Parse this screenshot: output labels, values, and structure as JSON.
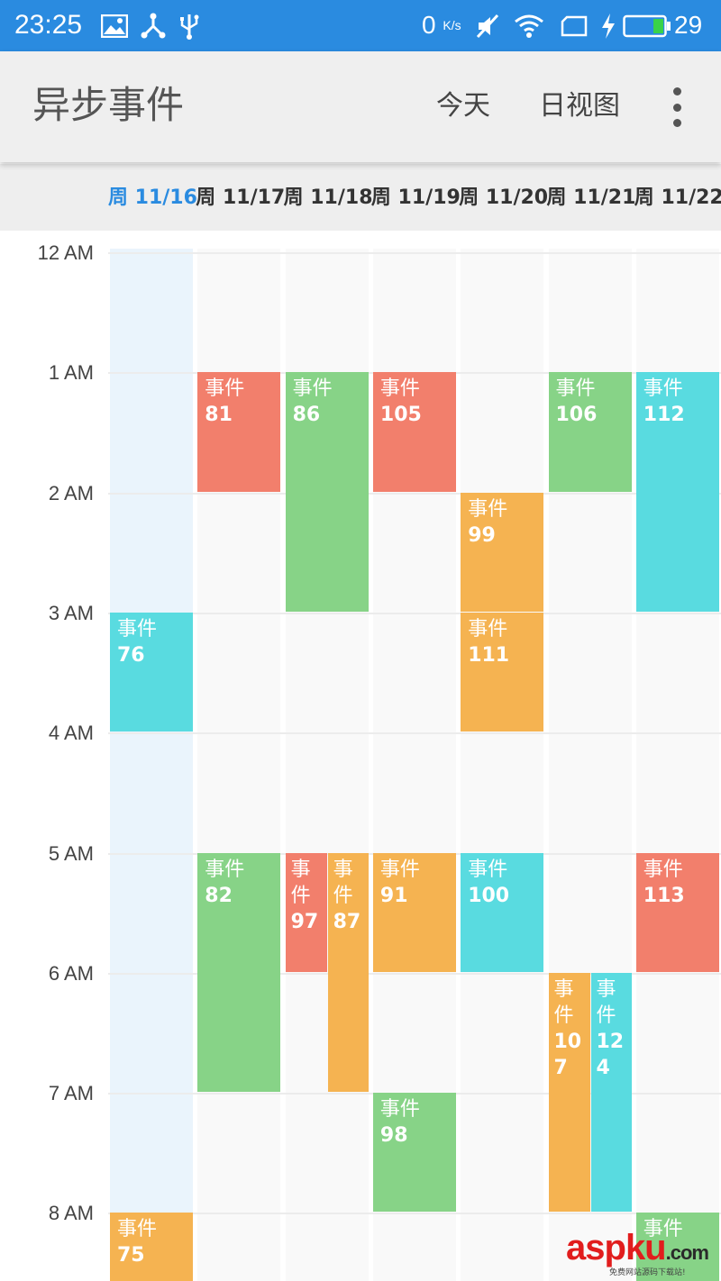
{
  "status_bar": {
    "time": "23:25",
    "speed_value": "0",
    "speed_unit": "K/s",
    "battery_level": "29",
    "icons": [
      "image-icon",
      "share-icon",
      "usb-icon",
      "mute-icon",
      "wifi-icon",
      "sim-icon",
      "charging-icon",
      "battery-icon"
    ]
  },
  "app_bar": {
    "title": "异步事件",
    "today_label": "今天",
    "day_view_label": "日视图",
    "overflow_icon": "more-vert-icon"
  },
  "dates": [
    {
      "label": "周 11/16",
      "today": true
    },
    {
      "label": "周 11/17",
      "today": false
    },
    {
      "label": "周 11/18",
      "today": false
    },
    {
      "label": "周 11/19",
      "today": false
    },
    {
      "label": "周 11/20",
      "today": false
    },
    {
      "label": "周 11/21",
      "today": false
    },
    {
      "label": "周 11/22",
      "today": false
    }
  ],
  "hours": [
    "12 AM",
    "1 AM",
    "2 AM",
    "3 AM",
    "4 AM",
    "5 AM",
    "6 AM",
    "7 AM",
    "8 AM"
  ],
  "colors": {
    "accent": "#2a8be0",
    "red": "#f27f6c",
    "green": "#87d387",
    "orange": "#f5b351",
    "cyan": "#59dbe0"
  },
  "event_label": "事件",
  "events": [
    {
      "day": 0,
      "start": 3,
      "end": 4,
      "color": "cyan",
      "label": "事件",
      "number": "76"
    },
    {
      "day": 0,
      "start": 8,
      "end": 9,
      "color": "orange",
      "label": "事件",
      "number": "75"
    },
    {
      "day": 1,
      "start": 1,
      "end": 2,
      "color": "red",
      "label": "事件",
      "number": "81"
    },
    {
      "day": 1,
      "start": 5,
      "end": 7,
      "color": "green",
      "label": "事件",
      "number": "82"
    },
    {
      "day": 2,
      "start": 1,
      "end": 3,
      "color": "green",
      "label": "事件",
      "number": "86"
    },
    {
      "day": 2,
      "start": 5,
      "end": 6,
      "color": "red",
      "label": "事件",
      "number": "97",
      "split": "left"
    },
    {
      "day": 2,
      "start": 5,
      "end": 7,
      "color": "orange",
      "label": "事件",
      "number": "87",
      "split": "right"
    },
    {
      "day": 3,
      "start": 1,
      "end": 2,
      "color": "red",
      "label": "事件",
      "number": "105"
    },
    {
      "day": 3,
      "start": 5,
      "end": 6,
      "color": "orange",
      "label": "事件",
      "number": "91"
    },
    {
      "day": 3,
      "start": 7,
      "end": 8,
      "color": "green",
      "label": "事件",
      "number": "98"
    },
    {
      "day": 4,
      "start": 2,
      "end": 3,
      "color": "orange",
      "label": "事件",
      "number": "99"
    },
    {
      "day": 4,
      "start": 3,
      "end": 4,
      "color": "orange",
      "label": "事件",
      "number": "111"
    },
    {
      "day": 4,
      "start": 5,
      "end": 6,
      "color": "cyan",
      "label": "事件",
      "number": "100"
    },
    {
      "day": 5,
      "start": 1,
      "end": 2,
      "color": "green",
      "label": "事件",
      "number": "106"
    },
    {
      "day": 5,
      "start": 6,
      "end": 8,
      "color": "orange",
      "label": "事件",
      "number": "107",
      "split": "left"
    },
    {
      "day": 5,
      "start": 6,
      "end": 8,
      "color": "cyan",
      "label": "事件",
      "number": "124",
      "split": "right"
    },
    {
      "day": 6,
      "start": 1,
      "end": 3,
      "color": "cyan",
      "label": "事件",
      "number": "112"
    },
    {
      "day": 6,
      "start": 5,
      "end": 6,
      "color": "red",
      "label": "事件",
      "number": "113"
    },
    {
      "day": 6,
      "start": 8,
      "end": 9,
      "color": "green",
      "label": "事件",
      "number": ""
    }
  ],
  "watermark": {
    "text_a": "asp",
    "text_b": "ku",
    "text_c": ".com",
    "subtitle": "免费网站源码下载站!"
  }
}
